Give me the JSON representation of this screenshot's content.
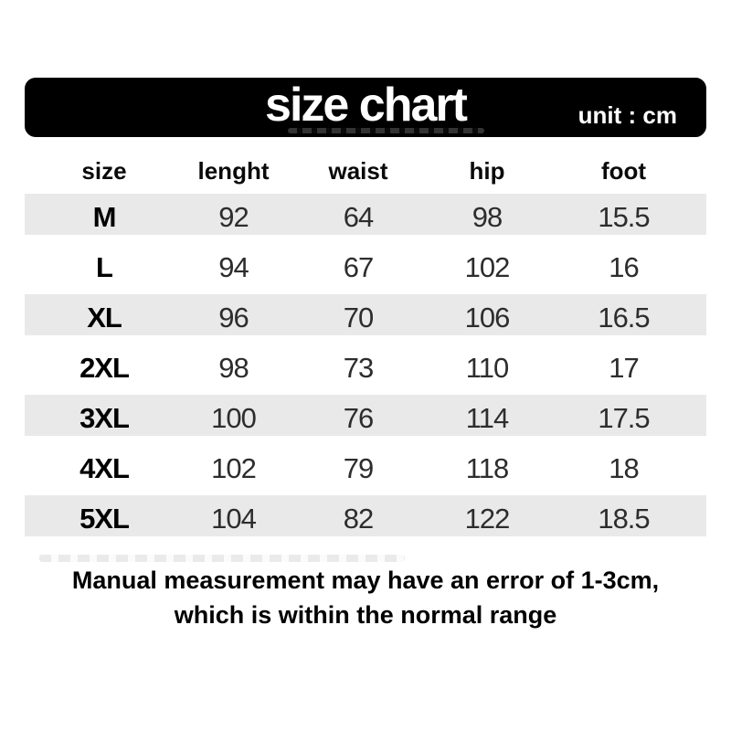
{
  "chart_data": {
    "type": "table",
    "title": "size chart",
    "unit": "cm",
    "columns": [
      "size",
      "lenght",
      "waist",
      "hip",
      "foot"
    ],
    "rows": [
      [
        "M",
        "92",
        "64",
        "98",
        "15.5"
      ],
      [
        "L",
        "94",
        "67",
        "102",
        "16"
      ],
      [
        "XL",
        "96",
        "70",
        "106",
        "16.5"
      ],
      [
        "2XL",
        "98",
        "73",
        "110",
        "17"
      ],
      [
        "3XL",
        "100",
        "76",
        "114",
        "17.5"
      ],
      [
        "4XL",
        "102",
        "79",
        "118",
        "18"
      ],
      [
        "5XL",
        "104",
        "82",
        "122",
        "18.5"
      ]
    ],
    "note": "Manual measurement may have an error of 1-3cm, which is within the normal range",
    "layout_hints": {
      "striped_rows": [
        0,
        2,
        4,
        6
      ],
      "grid": "off",
      "header_style": "bold black text on white",
      "title_style": "white bold text on black rounded banner"
    }
  },
  "banner": {
    "title": "size chart",
    "unit_label": "unit : cm",
    "bg_color": "#000000",
    "text_color": "#ffffff"
  },
  "note": {
    "line1": "Manual measurement may have an error of 1-3cm,",
    "line2": "which is within the normal range"
  },
  "colors": {
    "stripe": "#e9e9e9",
    "number_text": "#2d2d2d",
    "heading_text": "#0a0a0a",
    "page_bg": "#ffffff"
  }
}
